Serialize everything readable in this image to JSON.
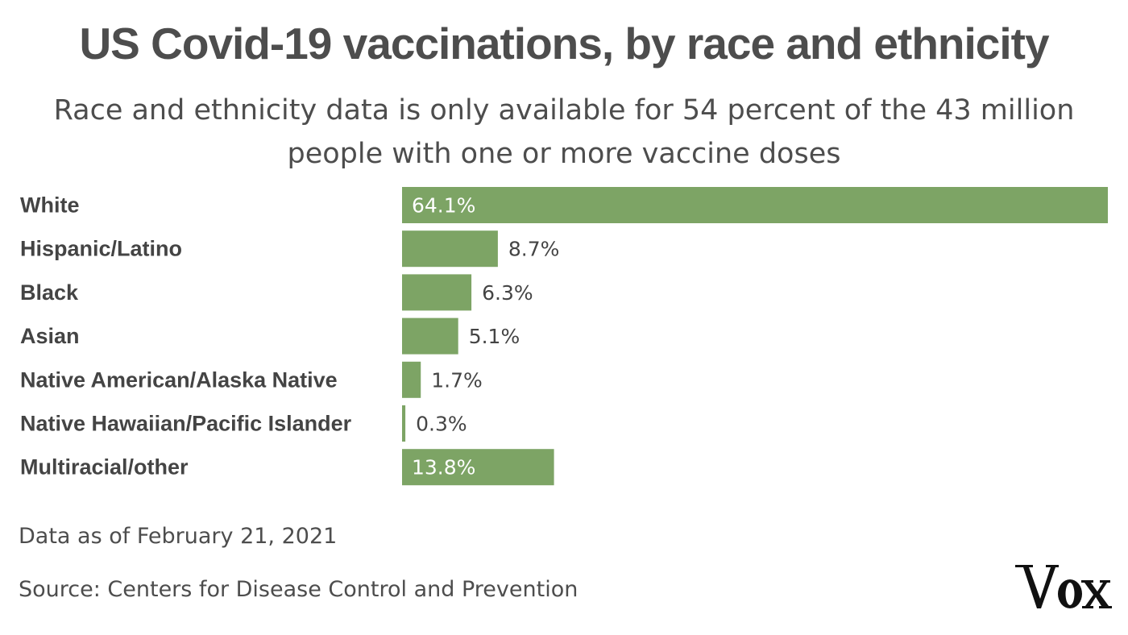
{
  "chart_data": {
    "type": "bar",
    "orientation": "horizontal",
    "title": "US Covid-19 vaccinations, by race and ethnicity",
    "subtitle": "Race and ethnicity data is only available for 54 percent of the 43 million people with one or more vaccine doses",
    "categories": [
      "White",
      "Hispanic/Latino",
      "Black",
      "Asian",
      "Native American/Alaska Native",
      "Native Hawaiian/Pacific Islander",
      "Multiracial/other"
    ],
    "values": [
      64.1,
      8.7,
      6.3,
      5.1,
      1.7,
      0.3,
      13.8
    ],
    "value_labels": [
      "64.1%",
      "8.7%",
      "6.3%",
      "5.1%",
      "1.7%",
      "0.3%",
      "13.8%"
    ],
    "xlim": [
      0,
      64.1
    ],
    "bar_color": "#7da465",
    "grid": false,
    "legend": "none"
  },
  "footer": {
    "note": "Data as of February 21, 2021",
    "source": "Source: Centers for Disease Control and Prevention",
    "logo": "Vox"
  }
}
